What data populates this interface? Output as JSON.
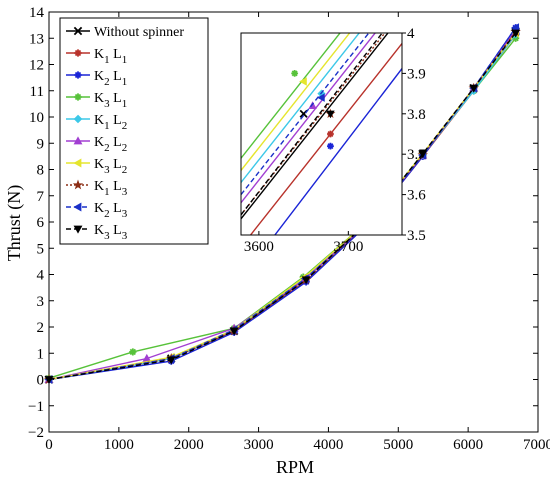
{
  "chart_data": [
    {
      "type": "line",
      "title": "",
      "xlabel": "RPM",
      "ylabel": "Thrust (N)",
      "xlim": [
        0,
        7000
      ],
      "ylim": [
        -2,
        14
      ],
      "xticks": [
        "0",
        "1000",
        "2000",
        "3000",
        "4000",
        "5000",
        "6000",
        "7000"
      ],
      "yticks": [
        "−2",
        "−1",
        "0",
        "1",
        "2",
        "3",
        "4",
        "5",
        "6",
        "7",
        "8",
        "9",
        "10",
        "11",
        "12",
        "13",
        "14"
      ],
      "grid": false,
      "legend_position": "top-left",
      "series": [
        {
          "name": "Without spinner",
          "color": "#000000",
          "dash": "solid",
          "marker": "x",
          "x": [
            0,
            1750,
            2650,
            3650,
            4600,
            5350,
            6080,
            6680
          ],
          "y": [
            0,
            0.8,
            1.85,
            3.8,
            6.05,
            8.55,
            11.1,
            13.25
          ]
        },
        {
          "name": "K1 L1",
          "sub": [
            "1",
            "1"
          ],
          "color": "#b8322b",
          "dash": "solid",
          "marker": "asterisk",
          "x": [
            0,
            1750,
            2650,
            3680,
            4600,
            5350,
            6080,
            6670
          ],
          "y": [
            0,
            0.8,
            1.85,
            3.75,
            6.0,
            8.5,
            11.0,
            13.1
          ]
        },
        {
          "name": "K2 L1",
          "sub": [
            "2",
            "1"
          ],
          "color": "#1a24d6",
          "dash": "solid",
          "marker": "asterisk",
          "x": [
            0,
            1750,
            2650,
            3680,
            4600,
            5350,
            6080,
            6680
          ],
          "y": [
            0,
            0.7,
            1.8,
            3.72,
            6.0,
            8.5,
            11.1,
            13.4
          ]
        },
        {
          "name": "K3 L1",
          "sub": [
            "3",
            "1"
          ],
          "color": "#57c23a",
          "dash": "solid",
          "marker": "asterisk",
          "x": [
            0,
            1200,
            2650,
            3640,
            4600,
            5350,
            6080,
            6680
          ],
          "y": [
            0.05,
            1.05,
            1.95,
            3.9,
            6.1,
            8.6,
            11.0,
            13.0
          ]
        },
        {
          "name": "K1 L2",
          "sub": [
            "1",
            "2"
          ],
          "color": "#3cc8e8",
          "dash": "solid",
          "marker": "diamond",
          "x": [
            0,
            1750,
            2650,
            3670,
            4600,
            5350,
            6080,
            6680
          ],
          "y": [
            0,
            0.8,
            1.9,
            3.85,
            6.05,
            8.55,
            11.0,
            13.15
          ]
        },
        {
          "name": "K2 L2",
          "sub": [
            "2",
            "2"
          ],
          "color": "#a23fd2",
          "dash": "solid",
          "marker": "triangle-up",
          "x": [
            0,
            1400,
            2650,
            3660,
            4600,
            5350,
            6080,
            6680
          ],
          "y": [
            0,
            0.8,
            1.95,
            3.82,
            6.05,
            8.55,
            11.1,
            13.3
          ]
        },
        {
          "name": "K3 L2",
          "sub": [
            "3",
            "2"
          ],
          "color": "#e5e52e",
          "dash": "solid",
          "marker": "triangle-left",
          "x": [
            0,
            1750,
            2650,
            3650,
            4600,
            5350,
            6080,
            6680
          ],
          "y": [
            0,
            0.85,
            1.9,
            3.88,
            6.1,
            8.6,
            11.1,
            13.2
          ]
        },
        {
          "name": "K1 L3",
          "sub": [
            "1",
            "3"
          ],
          "color": "#8c2e15",
          "dash": "dotted",
          "marker": "star",
          "x": [
            0,
            1750,
            2650,
            3680,
            4600,
            5350,
            6080,
            6680
          ],
          "y": [
            0,
            0.8,
            1.85,
            3.8,
            6.05,
            8.55,
            11.1,
            13.25
          ]
        },
        {
          "name": "K2 L3",
          "sub": [
            "2",
            "3"
          ],
          "color": "#1a30c8",
          "dash": "dashed",
          "marker": "triangle-left",
          "x": [
            0,
            1750,
            2650,
            3670,
            4600,
            5350,
            6080,
            6680
          ],
          "y": [
            0,
            0.8,
            1.9,
            3.84,
            6.05,
            8.55,
            11.1,
            13.4
          ]
        },
        {
          "name": "K3 L3",
          "sub": [
            "3",
            "3"
          ],
          "color": "#000000",
          "dash": "dashed",
          "marker": "triangle-down",
          "x": [
            0,
            1750,
            2650,
            3680,
            4600,
            5350,
            6080,
            6680
          ],
          "y": [
            0,
            0.75,
            1.85,
            3.8,
            6.1,
            8.6,
            11.1,
            13.2
          ]
        }
      ]
    },
    {
      "type": "line",
      "role": "inset-zoom",
      "xlim": [
        3580,
        3760
      ],
      "ylim": [
        3.5,
        4.0
      ],
      "xticks": [
        "3600",
        "3700"
      ],
      "yticks": [
        "3.5",
        "3.6",
        "3.7",
        "3.8",
        "3.9",
        "4"
      ],
      "series": [
        {
          "name": "Without spinner",
          "x": [
            3580,
            3780
          ],
          "y": [
            3.54,
            4.1
          ]
        },
        {
          "name": "K1 L1",
          "x": [
            3580,
            3780
          ],
          "y": [
            3.47,
            4.03
          ]
        },
        {
          "name": "K2 L1",
          "x": [
            3580,
            3780
          ],
          "y": [
            3.39,
            3.97
          ]
        },
        {
          "name": "K3 L1",
          "x": [
            3580,
            3780
          ],
          "y": [
            3.69,
            4.25
          ]
        },
        {
          "name": "K1 L2",
          "x": [
            3580,
            3780
          ],
          "y": [
            3.63,
            4.19
          ]
        },
        {
          "name": "K2 L2",
          "x": [
            3580,
            3780
          ],
          "y": [
            3.58,
            4.14
          ]
        },
        {
          "name": "K3 L2",
          "x": [
            3580,
            3780
          ],
          "y": [
            3.66,
            4.22
          ]
        },
        {
          "name": "K1 L3",
          "x": [
            3580,
            3780
          ],
          "y": [
            3.55,
            4.11
          ]
        },
        {
          "name": "K2 L3",
          "x": [
            3580,
            3780
          ],
          "y": [
            3.6,
            4.16
          ]
        },
        {
          "name": "K3 L3",
          "x": [
            3580,
            3780
          ],
          "y": [
            3.55,
            4.12
          ]
        }
      ]
    }
  ]
}
